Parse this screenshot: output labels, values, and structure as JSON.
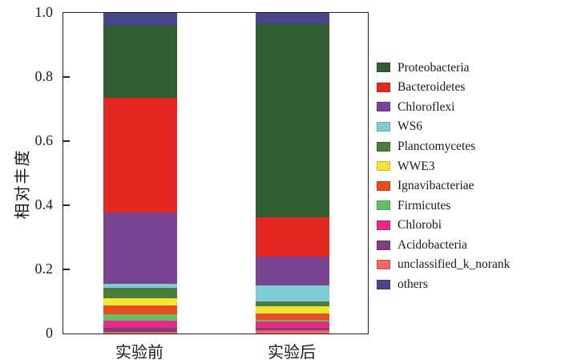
{
  "chart_data": {
    "type": "bar",
    "stacked": true,
    "title": "",
    "xlabel": "",
    "ylabel": "相对丰度",
    "ylim": [
      0,
      1.0
    ],
    "yticks": [
      {
        "value": 0,
        "label": "0"
      },
      {
        "value": 0.2,
        "label": "0.2"
      },
      {
        "value": 0.4,
        "label": "0.4"
      },
      {
        "value": 0.6,
        "label": "0.6"
      },
      {
        "value": 0.8,
        "label": "0.8"
      },
      {
        "value": 1.0,
        "label": "1.0"
      }
    ],
    "grid": false,
    "legend_position": "right",
    "categories": [
      "实验前",
      "实验后"
    ],
    "series": [
      {
        "name": "Proteobacteria",
        "color": "#305e30",
        "values": [
          0.225,
          0.603
        ]
      },
      {
        "name": "Bacteroidetes",
        "color": "#e32721",
        "values": [
          0.358,
          0.123
        ]
      },
      {
        "name": "Chloroflexi",
        "color": "#7b4492",
        "values": [
          0.222,
          0.088
        ]
      },
      {
        "name": "WS6",
        "color": "#7ecdd5",
        "values": [
          0.012,
          0.05
        ]
      },
      {
        "name": "Planctomycetes",
        "color": "#4b7e3c",
        "values": [
          0.034,
          0.017
        ]
      },
      {
        "name": "WWE3",
        "color": "#efe634",
        "values": [
          0.021,
          0.021
        ]
      },
      {
        "name": "Ignavibacteriae",
        "color": "#e64e22",
        "values": [
          0.028,
          0.02
        ]
      },
      {
        "name": "Firmicutes",
        "color": "#66bd66",
        "values": [
          0.021,
          0.006
        ]
      },
      {
        "name": "Chlorobi",
        "color": "#e62a86",
        "values": [
          0.021,
          0.019
        ]
      },
      {
        "name": "Acidobacteria",
        "color": "#7f3f77",
        "values": [
          0.012,
          0.008
        ]
      },
      {
        "name": "unclassified_k_norank",
        "color": "#ec6a63",
        "values": [
          0.006,
          0.01
        ]
      },
      {
        "name": "others",
        "color": "#474689",
        "values": [
          0.04,
          0.035
        ]
      }
    ],
    "stack_order_bottom_to_top": [
      "unclassified_k_norank",
      "Acidobacteria",
      "Chlorobi",
      "Firmicutes",
      "Ignavibacteriae",
      "WWE3",
      "Planctomycetes",
      "WS6",
      "Chloroflexi",
      "Bacteroidetes",
      "Proteobacteria",
      "others"
    ],
    "axis_color": "#222222"
  }
}
